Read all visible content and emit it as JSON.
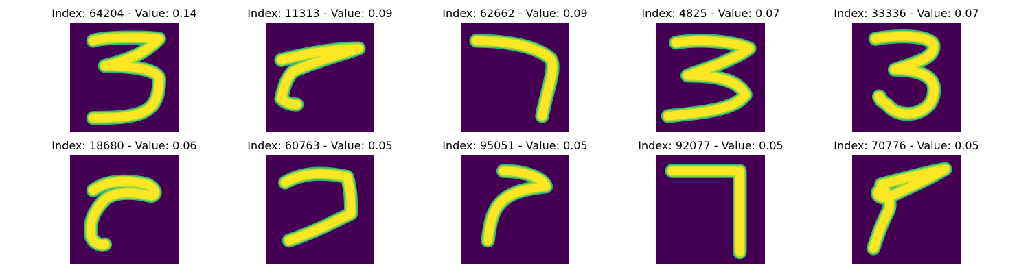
{
  "colors": {
    "background": "#440154",
    "stroke_edge": "#35b779",
    "stroke_mid": "#a0da39",
    "stroke_core": "#fde725"
  },
  "panels": [
    {
      "title": "Index: 64204 - Value: 0.14",
      "digit": "3"
    },
    {
      "title": "Index: 11313 - Value: 0.09",
      "digit": "7"
    },
    {
      "title": "Index: 62662 - Value: 0.09",
      "digit": "7"
    },
    {
      "title": "Index: 4825 - Value: 0.07",
      "digit": "3"
    },
    {
      "title": "Index: 33336 - Value: 0.07",
      "digit": "3"
    },
    {
      "title": "Index: 18680 - Value: 0.06",
      "digit": "7"
    },
    {
      "title": "Index: 60763 - Value: 0.05",
      "digit": "7"
    },
    {
      "title": "Index: 95051 - Value: 0.05",
      "digit": "7"
    },
    {
      "title": "Index: 92077 - Value: 0.05",
      "digit": "7"
    },
    {
      "title": "Index: 70776 - Value: 0.05",
      "digit": "7"
    }
  ]
}
